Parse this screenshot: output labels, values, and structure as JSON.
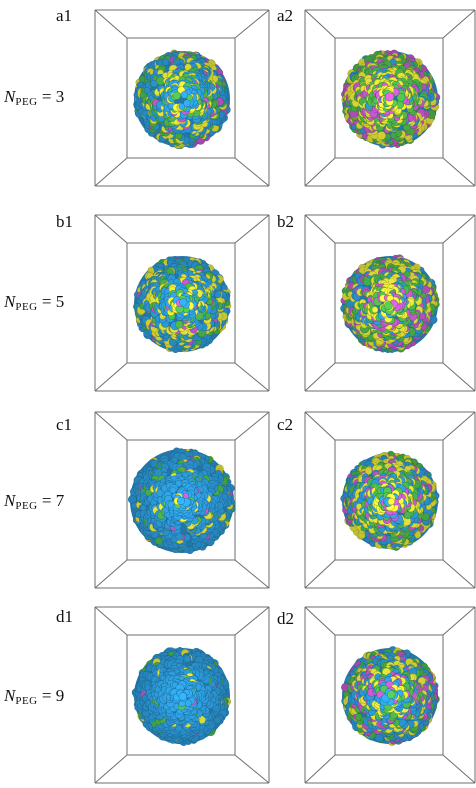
{
  "figure": {
    "rows": [
      {
        "n_value": "3",
        "left_label": "a1",
        "right_label": "a2",
        "left_composition": {
          "blue": 0.5,
          "green": 0.18,
          "yellow": 0.26,
          "magenta": 0.06
        },
        "right_composition": {
          "blue": 0.06,
          "green": 0.38,
          "yellow": 0.36,
          "magenta": 0.2
        }
      },
      {
        "n_value": "5",
        "left_label": "b1",
        "right_label": "b2",
        "left_composition": {
          "blue": 0.55,
          "green": 0.17,
          "yellow": 0.25,
          "magenta": 0.03
        },
        "right_composition": {
          "blue": 0.2,
          "green": 0.28,
          "yellow": 0.32,
          "magenta": 0.2
        }
      },
      {
        "n_value": "7",
        "left_label": "c1",
        "right_label": "c2",
        "left_composition": {
          "blue": 0.82,
          "green": 0.09,
          "yellow": 0.07,
          "magenta": 0.02
        },
        "right_composition": {
          "blue": 0.3,
          "green": 0.26,
          "yellow": 0.3,
          "magenta": 0.14
        }
      },
      {
        "n_value": "9",
        "left_label": "d1",
        "right_label": "d2",
        "left_composition": {
          "blue": 0.9,
          "green": 0.05,
          "yellow": 0.04,
          "magenta": 0.01
        },
        "right_composition": {
          "blue": 0.42,
          "green": 0.2,
          "yellow": 0.22,
          "magenta": 0.16
        }
      }
    ],
    "n_symbol": "N",
    "n_subscript": "PEG",
    "equals": " = ",
    "colors": {
      "blue": "#2e9fe0",
      "green": "#4dbb4d",
      "yellow": "#ecec3a",
      "magenta": "#c85ad0",
      "box_line": "#6e6e6e"
    }
  }
}
